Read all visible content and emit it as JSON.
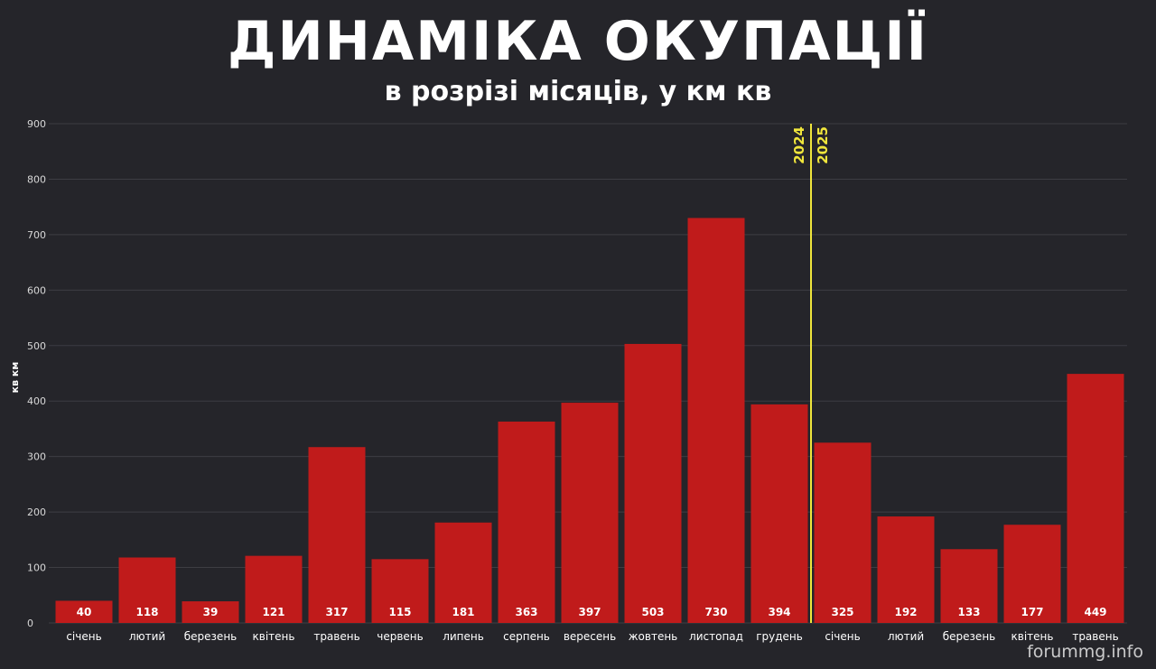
{
  "chart_data": {
    "type": "bar",
    "title": "ДИНАМІКА ОКУПАЦІЇ",
    "subtitle": "в розрізі місяців, у км кв",
    "ylabel": "кв км",
    "ylim": [
      0,
      900
    ],
    "yticks": [
      0,
      100,
      200,
      300,
      400,
      500,
      600,
      700,
      800,
      900
    ],
    "grid": true,
    "categories": [
      "січень",
      "лютий",
      "березень",
      "квітень",
      "травень",
      "червень",
      "липень",
      "серпень",
      "вересень",
      "жовтень",
      "листопад",
      "грудень",
      "січень",
      "лютий",
      "березень",
      "квітень",
      "травень"
    ],
    "values": [
      40,
      118,
      39,
      121,
      317,
      115,
      181,
      363,
      397,
      503,
      730,
      394,
      325,
      192,
      133,
      177,
      449
    ],
    "bar_color": "#c01b1b",
    "divider": {
      "after_index": 11,
      "label_left": "2024",
      "label_right": "2025",
      "color": "#f0e63c"
    }
  },
  "watermark": "forummg.info",
  "colors": {
    "background": "#25252a",
    "grid": "#3d3d43",
    "text": "#ffffff",
    "tick": "#d8d8d8"
  }
}
